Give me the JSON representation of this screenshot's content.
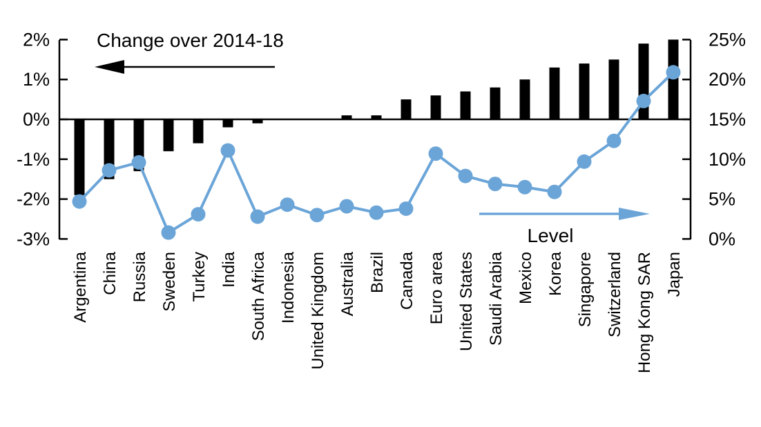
{
  "chart_data": {
    "type": "combo-bar-line",
    "categories": [
      "Argentina",
      "China",
      "Russia",
      "Sweden",
      "Turkey",
      "India",
      "South Africa",
      "Indonesia",
      "United Kingdom",
      "Australia",
      "Brazil",
      "Canada",
      "Euro area",
      "United States",
      "Saudi Arabia",
      "Mexico",
      "Korea",
      "Singapore",
      "Switzerland",
      "Hong Kong SAR",
      "Japan"
    ],
    "series": [
      {
        "name": "Change over 2014-18",
        "type": "bar",
        "axis": "left",
        "values": [
          -1.9,
          -1.5,
          -1.3,
          -0.8,
          -0.6,
          -0.2,
          -0.1,
          0.0,
          0.0,
          0.1,
          0.1,
          0.5,
          0.6,
          0.7,
          0.8,
          1.0,
          1.3,
          1.4,
          1.5,
          1.9,
          2.0
        ]
      },
      {
        "name": "Level",
        "type": "line",
        "axis": "right",
        "values": [
          4.7,
          8.6,
          9.6,
          0.8,
          3.1,
          11.1,
          2.8,
          4.3,
          3.0,
          4.1,
          3.3,
          3.8,
          10.7,
          7.9,
          6.9,
          6.5,
          5.9,
          9.7,
          12.3,
          17.3,
          20.9
        ]
      }
    ],
    "left_axis": {
      "min": -3,
      "max": 2,
      "tick_values": [
        2,
        1,
        0,
        -1,
        -2,
        -3
      ],
      "tick_labels": [
        "2%",
        "1%",
        "0%",
        "-1%",
        "-2%",
        "-3%"
      ]
    },
    "right_axis": {
      "min": 0,
      "max": 25,
      "tick_values": [
        25,
        20,
        15,
        10,
        5,
        0
      ],
      "tick_labels": [
        "25%",
        "20%",
        "15%",
        "10%",
        "5%",
        "0%"
      ]
    },
    "grid": false,
    "annotations": {
      "bar_series_label": "Change over 2014-18",
      "line_series_label": "Level"
    },
    "colors": {
      "bar": "#000000",
      "line": "#6BA5D8",
      "axis": "#000000"
    }
  }
}
